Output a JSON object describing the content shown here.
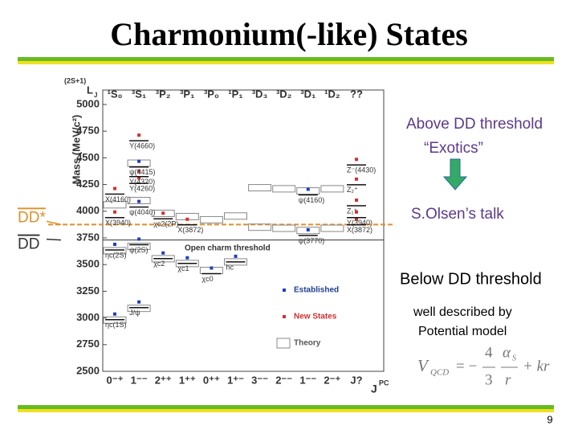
{
  "title": "Charmonium(-like) States",
  "page_number": "9",
  "chart_data": {
    "type": "level",
    "y_label": "Mass (MeV/c²)",
    "column_header": {
      "prefix": "(2S+1)",
      "main": "L",
      "sub": "J"
    },
    "x_label": {
      "main": "J",
      "sup": "PC"
    },
    "ylim": [
      2500,
      5000
    ],
    "yticks": [
      2500,
      2750,
      3000,
      3250,
      3500,
      3750,
      4000,
      4250,
      4500,
      4750,
      5000
    ],
    "thresholds": [
      {
        "label": "DD*",
        "mass": 3875,
        "color": "#e0902a"
      },
      {
        "label": "DD",
        "mass": 3730,
        "color": "#333333",
        "note": "Open charm threshold"
      }
    ],
    "legend": [
      {
        "label": "Established",
        "color": "#1f3fbf"
      },
      {
        "label": "New States",
        "color": "#d03030"
      },
      {
        "label": "Theory",
        "color": "#888888"
      }
    ],
    "columns": [
      {
        "name": "¹S₀",
        "jpc": "0⁻⁺",
        "theory": [
          2980,
          3630,
          4060
        ],
        "states": [
          {
            "label": "ηc(1S)",
            "mass": 2984,
            "new": false
          },
          {
            "label": "ηc(2S)",
            "mass": 3637,
            "new": false
          },
          {
            "label": "X(3940)",
            "mass": 3940,
            "new": true
          },
          {
            "label": "X(4160)",
            "mass": 4160,
            "new": true
          }
        ]
      },
      {
        "name": "³S₁",
        "jpc": "1⁻⁻",
        "theory": [
          3090,
          3670,
          4100,
          4450
        ],
        "states": [
          {
            "label": "J/ψ",
            "mass": 3097,
            "new": false
          },
          {
            "label": "ψ(2S)",
            "mass": 3686,
            "new": false
          },
          {
            "label": "ψ(4040)",
            "mass": 4039,
            "new": false
          },
          {
            "label": "Y(4260)",
            "mass": 4260,
            "new": true
          },
          {
            "label": "Y(4320)",
            "mass": 4324,
            "new": true
          },
          {
            "label": "ψ(4415)",
            "mass": 4415,
            "new": false
          },
          {
            "label": "Y(4660)",
            "mass": 4660,
            "new": true
          }
        ]
      },
      {
        "name": "³P₂",
        "jpc": "2⁺⁺",
        "theory": [
          3555,
          3980
        ],
        "states": [
          {
            "label": "χc2",
            "mass": 3556,
            "new": false
          },
          {
            "label": "χc2(2P)",
            "mass": 3929,
            "new": true
          }
        ]
      },
      {
        "name": "³P₁",
        "jpc": "1⁺⁺",
        "theory": [
          3510,
          3950
        ],
        "states": [
          {
            "label": "χc1",
            "mass": 3511,
            "new": false
          },
          {
            "label": "X(3872)",
            "mass": 3872,
            "new": true
          }
        ]
      },
      {
        "name": "³P₀",
        "jpc": "0⁺⁺",
        "theory": [
          3445,
          3920
        ],
        "states": [
          {
            "label": "χc0",
            "mass": 3415,
            "new": false
          }
        ]
      },
      {
        "name": "¹P₁",
        "jpc": "1⁺⁻",
        "theory": [
          3525,
          3955
        ],
        "states": [
          {
            "label": "hc",
            "mass": 3525,
            "new": false
          }
        ]
      },
      {
        "name": "³D₃",
        "jpc": "3⁻⁻",
        "theory": [
          3850,
          4220
        ],
        "states": []
      },
      {
        "name": "³D₂",
        "jpc": "2⁻⁻",
        "theory": [
          3840,
          4210
        ],
        "states": []
      },
      {
        "name": "³D₁",
        "jpc": "1⁻⁻",
        "theory": [
          3820,
          4190
        ],
        "states": [
          {
            "label": "ψ(3770)",
            "mass": 3773,
            "new": false
          },
          {
            "label": "ψ(4160)",
            "mass": 4153,
            "new": false
          }
        ]
      },
      {
        "name": "¹D₂",
        "jpc": "2⁻⁺",
        "theory": [
          3840,
          4210
        ],
        "states": []
      },
      {
        "name": "??",
        "jpc": "J?",
        "theory": [],
        "states": [
          {
            "label": "X(3872)",
            "mass": 3872,
            "new": true
          },
          {
            "label": "Y(3940)",
            "mass": 3940,
            "new": true
          },
          {
            "label": "Z₁⁺",
            "mass": 4051,
            "new": true
          },
          {
            "label": "Z₂⁺",
            "mass": 4248,
            "new": true
          },
          {
            "label": "Z⁻(4430)",
            "mass": 4433,
            "new": true
          }
        ]
      }
    ]
  },
  "notes": {
    "above": "Above DD threshold",
    "exotics": "“Exotics”",
    "talk": "S.Olsen’s talk",
    "below": "Below DD threshold",
    "described": "well described by",
    "model": "Potential model"
  },
  "formula": {
    "v": "V",
    "v_sub": "QCD",
    "eq": "= −",
    "num": "4",
    "den": "3",
    "alpha": "α",
    "alpha_sub": "S",
    "r": "r",
    "tail": "+ kr"
  }
}
